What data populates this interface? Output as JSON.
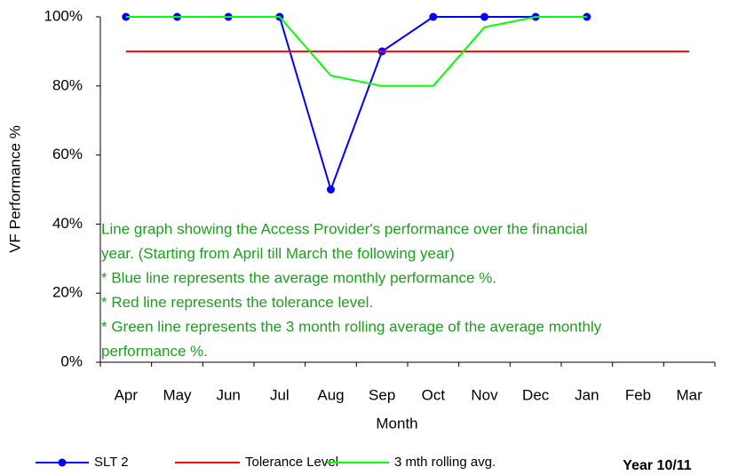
{
  "chart_data": {
    "type": "line",
    "xlabel": "Month",
    "ylabel": "VF Performance %",
    "categories": [
      "Apr",
      "May",
      "Jun",
      "Jul",
      "Aug",
      "Sep",
      "Oct",
      "Nov",
      "Dec",
      "Jan",
      "Feb",
      "Mar"
    ],
    "series": [
      {
        "name": "SLT 2",
        "color": "#0000ff",
        "markers": true,
        "values": [
          100,
          100,
          100,
          100,
          50,
          90,
          100,
          100,
          100,
          100,
          null,
          null
        ]
      },
      {
        "name": "Tolerance Level",
        "color": "#ff0000",
        "markers": false,
        "values": [
          90,
          90,
          90,
          90,
          90,
          90,
          90,
          90,
          90,
          90,
          90,
          90
        ]
      },
      {
        "name": "3 mth rolling avg.",
        "color": "#00ff00",
        "markers": false,
        "values": [
          100,
          100,
          100,
          100,
          83,
          80,
          80,
          97,
          100,
          100,
          null,
          null
        ]
      }
    ],
    "ylim": [
      0,
      100
    ],
    "yticks": [
      {
        "value": 0,
        "label": "0%"
      },
      {
        "value": 20,
        "label": "20%"
      },
      {
        "value": 40,
        "label": "40%"
      },
      {
        "value": 60,
        "label": "60%"
      },
      {
        "value": 80,
        "label": "80%"
      },
      {
        "value": 100,
        "label": "100%"
      }
    ],
    "annotation": [
      "Line graph showing the Access Provider's performance over the financial",
      "year. (Starting from April till March the following year)",
      "* Blue line represents the average monthly performance %.",
      "* Red line represents the tolerance level.",
      "* Green line represents the 3 month rolling average of the average monthly",
      "performance %."
    ],
    "annotation_color": "#1e9e1e",
    "legend": "bottom",
    "footnote": "Year 10/11"
  }
}
